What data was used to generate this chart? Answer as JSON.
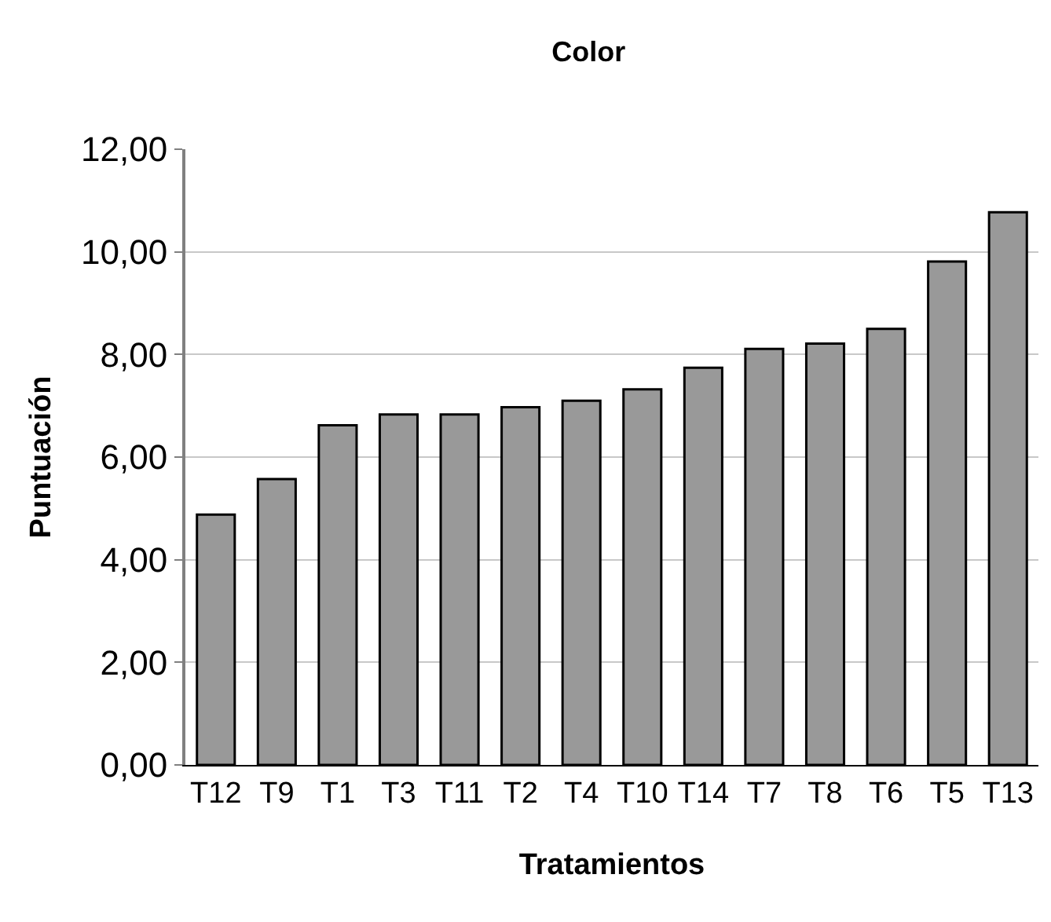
{
  "chart_data": {
    "type": "bar",
    "title": "Color",
    "xlabel": "Tratamientos",
    "ylabel": "Puntuación",
    "categories": [
      "T12",
      "T9",
      "T1",
      "T3",
      "T11",
      "T2",
      "T4",
      "T10",
      "T14",
      "T7",
      "T8",
      "T6",
      "T5",
      "T13"
    ],
    "values": [
      4.88,
      5.57,
      6.62,
      6.83,
      6.83,
      6.97,
      7.1,
      7.32,
      7.74,
      8.11,
      8.21,
      8.5,
      9.81,
      10.77
    ],
    "color": "#999999",
    "ylim": [
      0,
      12
    ],
    "yticks": [
      {
        "value": 0,
        "label": "0,00"
      },
      {
        "value": 2,
        "label": "2,00"
      },
      {
        "value": 4,
        "label": "4,00"
      },
      {
        "value": 6,
        "label": "6,00"
      },
      {
        "value": 8,
        "label": "8,00"
      },
      {
        "value": 10,
        "label": "10,00"
      },
      {
        "value": 12,
        "label": "12,00"
      }
    ],
    "grid": "y"
  }
}
